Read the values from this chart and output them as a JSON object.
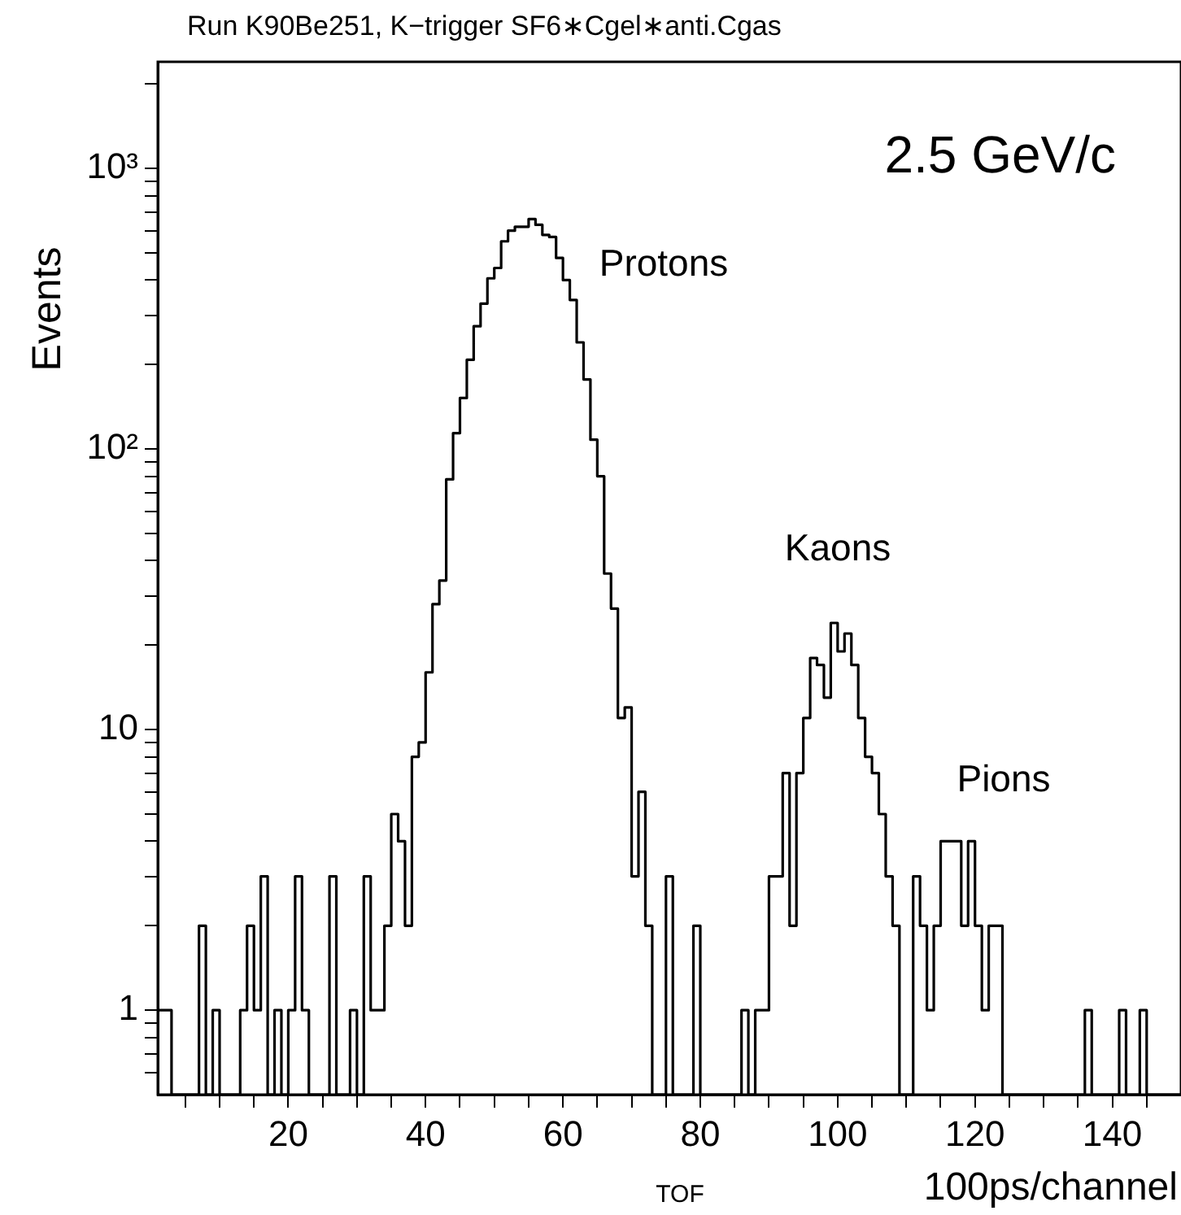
{
  "chart_data": {
    "type": "histogram",
    "title": "Run K90Be251, K−trigger SF6∗Cgel∗anti.Cgas",
    "xlabel": "100ps/channel",
    "ylabel": "Events",
    "color": "#000000",
    "log": "y",
    "bins": [
      1,
      2,
      3,
      4,
      5,
      6,
      7,
      8,
      9,
      10,
      11,
      12,
      13,
      14,
      15,
      16,
      17,
      18,
      19,
      20,
      21,
      22,
      23,
      24,
      25,
      26,
      27,
      28,
      29,
      30,
      31,
      32,
      33,
      34,
      35,
      36,
      37,
      38,
      39,
      40,
      41,
      42,
      43,
      44,
      45,
      46,
      47,
      48,
      49,
      50,
      51,
      52,
      53,
      54,
      55,
      56,
      57,
      58,
      59,
      60,
      61,
      62,
      63,
      64,
      65,
      66,
      67,
      68,
      69,
      70,
      71,
      72,
      73,
      74,
      75,
      76,
      77,
      78,
      79,
      80,
      81,
      82,
      83,
      84,
      85,
      86,
      87,
      88,
      89,
      90,
      91,
      92,
      93,
      94,
      95,
      96,
      97,
      98,
      99,
      100,
      101,
      102,
      103,
      104,
      105,
      106,
      107,
      108,
      109,
      110,
      111,
      112,
      113,
      114,
      115,
      116,
      117,
      118,
      119,
      120,
      121,
      122,
      123,
      124,
      125,
      126,
      127,
      128,
      129,
      130,
      131,
      132,
      133,
      134,
      135,
      136,
      137,
      138,
      139,
      140,
      141,
      142,
      143,
      144,
      145,
      146,
      147,
      148,
      149,
      150
    ],
    "values": [
      1,
      1,
      null,
      null,
      null,
      null,
      2,
      null,
      1,
      null,
      null,
      null,
      1,
      2,
      1,
      3,
      null,
      1,
      null,
      1,
      3,
      1,
      null,
      null,
      null,
      3,
      null,
      null,
      1,
      null,
      3,
      1,
      1,
      2,
      5,
      4,
      2,
      8,
      9,
      16,
      28,
      34,
      78,
      114,
      152,
      208,
      274,
      330,
      406,
      442,
      550,
      600,
      620,
      620,
      660,
      630,
      580,
      570,
      480,
      400,
      340,
      240,
      177,
      108,
      80,
      36,
      27,
      11,
      12,
      3,
      6,
      2,
      null,
      null,
      3,
      null,
      null,
      null,
      2,
      null,
      null,
      null,
      null,
      null,
      null,
      1,
      null,
      1,
      1,
      3,
      3,
      7,
      2,
      7,
      11,
      18,
      17,
      13,
      24,
      19,
      22,
      17,
      11,
      8,
      7,
      5,
      3,
      2,
      null,
      null,
      3,
      2,
      1,
      2,
      4,
      4,
      4,
      2,
      4,
      2,
      1,
      2,
      2,
      null,
      null,
      null,
      null,
      null,
      null,
      null,
      null,
      null,
      null,
      null,
      null,
      1,
      null,
      null,
      null,
      null,
      1,
      null,
      null,
      1,
      null,
      null,
      null,
      null,
      null
    ],
    "xlim": [
      1,
      150
    ],
    "ylim": [
      0.5,
      2400
    ],
    "xticks": [
      {
        "value": 5,
        "label": null
      },
      {
        "value": 10,
        "label": null
      },
      {
        "value": 15,
        "label": null
      },
      20,
      {
        "value": 25,
        "label": null
      },
      {
        "value": 30,
        "label": null
      },
      {
        "value": 35,
        "label": null
      },
      40,
      {
        "value": 45,
        "label": null
      },
      {
        "value": 50,
        "label": null
      },
      {
        "value": 55,
        "label": null
      },
      60,
      {
        "value": 65,
        "label": null
      },
      {
        "value": 70,
        "label": null
      },
      {
        "value": 75,
        "label": null
      },
      80,
      {
        "value": 85,
        "label": null
      },
      {
        "value": 90,
        "label": null
      },
      {
        "value": 95,
        "label": null
      },
      100,
      {
        "value": 105,
        "label": null
      },
      {
        "value": 110,
        "label": null
      },
      {
        "value": 115,
        "label": null
      },
      120,
      {
        "value": 125,
        "label": null
      },
      {
        "value": 130,
        "label": null
      },
      {
        "value": 135,
        "label": null
      },
      140,
      {
        "value": 145,
        "label": null
      }
    ],
    "yticks": [
      {
        "value": 0.6,
        "label": null
      },
      {
        "value": 0.7,
        "label": null
      },
      {
        "value": 0.8,
        "label": null
      },
      {
        "value": 0.9,
        "label": null
      },
      1,
      {
        "value": 2,
        "label": null
      },
      {
        "value": 3,
        "label": null
      },
      {
        "value": 4,
        "label": null
      },
      {
        "value": 5,
        "label": null
      },
      {
        "value": 6,
        "label": null
      },
      {
        "value": 7,
        "label": null
      },
      {
        "value": 8,
        "label": null
      },
      {
        "value": 9,
        "label": null
      },
      10,
      {
        "value": 20,
        "label": null
      },
      {
        "value": 30,
        "label": null
      },
      {
        "value": 40,
        "label": null
      },
      {
        "value": 50,
        "label": null
      },
      {
        "value": 60,
        "label": null
      },
      {
        "value": 70,
        "label": null
      },
      {
        "value": 80,
        "label": null
      },
      {
        "value": 90,
        "label": null
      },
      {
        "value": 100,
        "label": "10²"
      },
      {
        "value": 200,
        "label": null
      },
      {
        "value": 300,
        "label": null
      },
      {
        "value": 400,
        "label": null
      },
      {
        "value": 500,
        "label": null
      },
      {
        "value": 600,
        "label": null
      },
      {
        "value": 700,
        "label": null
      },
      {
        "value": 800,
        "label": null
      },
      {
        "value": 900,
        "label": null
      },
      {
        "value": 1000,
        "label": "10³"
      },
      {
        "value": 2000,
        "label": null
      }
    ],
    "annotations": [
      "2.5 GeV/c",
      "TOF",
      "Protons",
      "Kaons",
      "Pions"
    ]
  }
}
